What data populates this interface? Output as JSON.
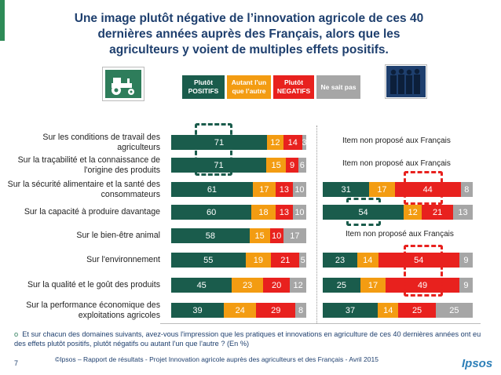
{
  "title": "Une image plutôt négative de l’innovation agricole de ces 40 dernières années auprès des Français, alors que les agriculteurs y voient de multiples effets positifs.",
  "colors": {
    "positive": "#1a5c4c",
    "neutral": "#f39c12",
    "negative": "#e8211e",
    "nsp": "#a6a6a6",
    "title": "#1e3f6e"
  },
  "icons": {
    "left": "tractor-icon",
    "right": "people-group-icon"
  },
  "legend": [
    {
      "label": "Plutôt POSITIFS",
      "color": "#1a5c4c"
    },
    {
      "label": "Autant l’un que l’autre",
      "color": "#f39c12"
    },
    {
      "label": "Plutôt NEGATIFS",
      "color": "#e8211e"
    },
    {
      "label": "Ne sait pas",
      "color": "#a6a6a6"
    }
  ],
  "chart_data": {
    "type": "bar",
    "categories": [
      "Sur les conditions de travail des agriculteurs",
      "Sur la traçabilité et la connaissance de l'origine des produits",
      "Sur la sécurité alimentaire et la santé des consommateurs",
      "Sur la capacité à produire davantage",
      "Sur le bien-être animal",
      "Sur l'environnement",
      "Sur la qualité et le goût des produits",
      "Sur la performance économique des exploitations agricoles"
    ],
    "series_names": [
      "Plutôt POSITIFS",
      "Autant l’un que l’autre",
      "Plutôt NEGATIFS",
      "Ne sait pas"
    ],
    "agriculteurs": [
      [
        71,
        12,
        14,
        3
      ],
      [
        71,
        15,
        9,
        6
      ],
      [
        61,
        17,
        13,
        10
      ],
      [
        60,
        18,
        13,
        10
      ],
      [
        58,
        15,
        10,
        17
      ],
      [
        55,
        19,
        21,
        5
      ],
      [
        45,
        23,
        20,
        12
      ],
      [
        39,
        24,
        29,
        8
      ]
    ],
    "francais": [
      null,
      null,
      [
        31,
        17,
        44,
        8
      ],
      [
        54,
        12,
        21,
        13
      ],
      null,
      [
        23,
        14,
        54,
        9
      ],
      [
        25,
        17,
        49,
        9
      ],
      [
        37,
        14,
        25,
        25
      ]
    ],
    "not_proposed_label": "Item non proposé aux Français"
  },
  "footnote": "Et sur chacun des domaines suivants, avez-vous l'impression que les pratiques et innovations en agriculture de ces 40 dernières années ont eu des effets plutôt positifs, plutôt négatifs ou autant l'un que l'autre ? (En %)",
  "footnote_bullet": "o",
  "page_number": "7",
  "credit": "©Ipsos – Rapport de résultats - Projet Innovation agricole auprès des agriculteurs et des Français - Avril 2015",
  "logo": "Ipsos"
}
